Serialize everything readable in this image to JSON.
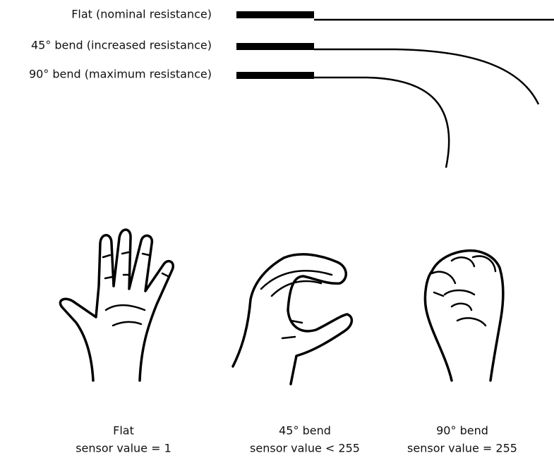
{
  "bends": [
    {
      "label": "Flat (nominal resistance)"
    },
    {
      "label": "45° bend (increased resistance)"
    },
    {
      "label": "90° bend (maximum resistance)"
    }
  ],
  "hands": [
    {
      "name": "Flat",
      "value": "sensor value = 1"
    },
    {
      "name": "45° bend",
      "value": "sensor value < 255"
    },
    {
      "name": "90° bend",
      "value": "sensor value = 255"
    }
  ]
}
